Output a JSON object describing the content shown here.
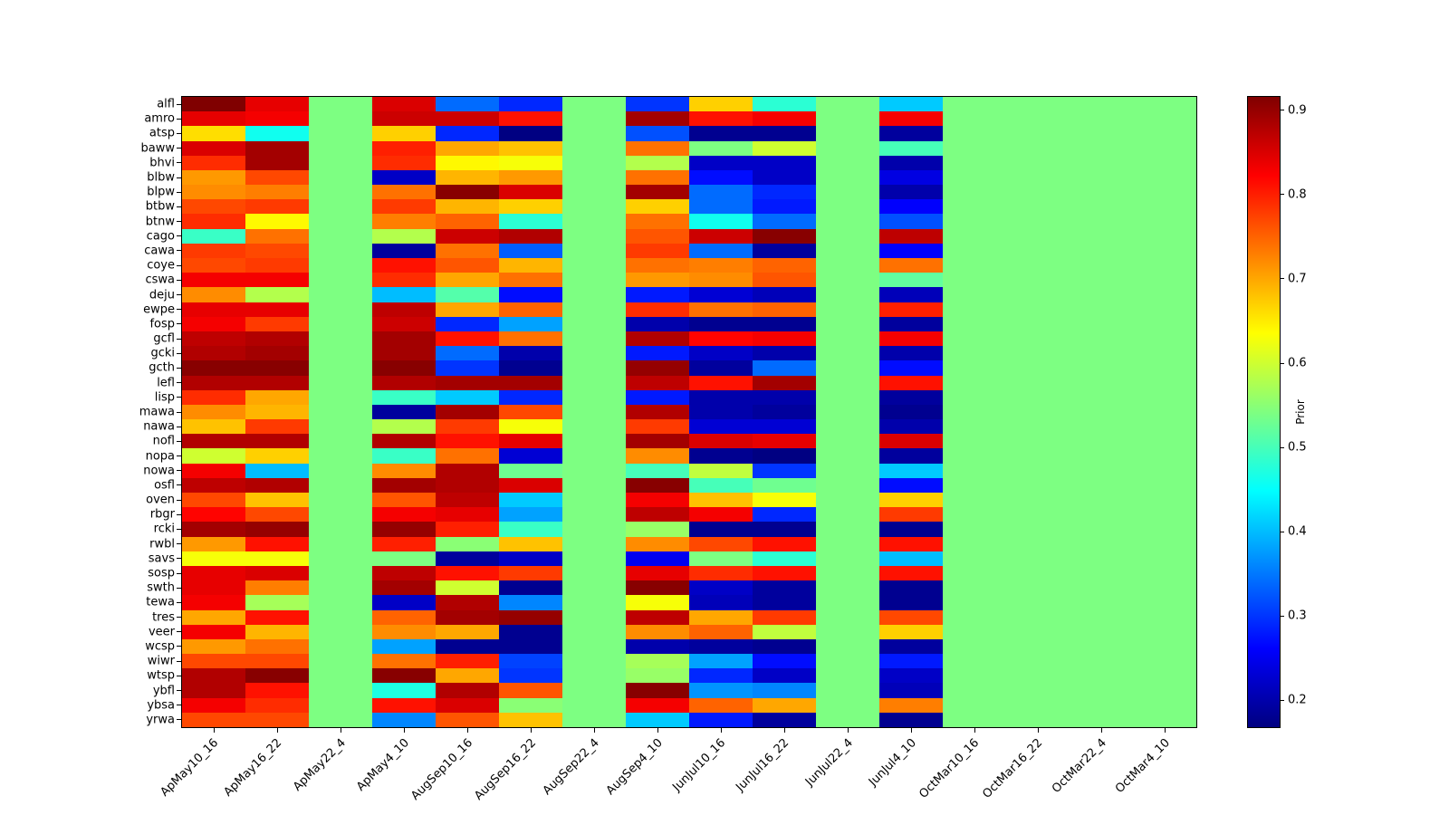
{
  "figure": {
    "background_color": "#ffffff"
  },
  "chart_data": {
    "type": "heatmap",
    "colormap": "jet",
    "vmin": 0.168,
    "vmax": 0.916,
    "grid": "off",
    "x_labels": [
      "ApMay10_16",
      "ApMay16_22",
      "ApMay22_4",
      "ApMay4_10",
      "AugSep10_16",
      "AugSep16_22",
      "AugSep22_4",
      "AugSep4_10",
      "JunJul10_16",
      "JunJul16_22",
      "JunJul22_4",
      "JunJul4_10",
      "OctMar10_16",
      "OctMar16_22",
      "OctMar22_4",
      "OctMar4_10"
    ],
    "y_labels": [
      "alfl",
      "amro",
      "atsp",
      "baww",
      "bhvi",
      "blbw",
      "blpw",
      "btbw",
      "btnw",
      "cago",
      "cawa",
      "coye",
      "cswa",
      "deju",
      "ewpe",
      "fosp",
      "gcfl",
      "gcki",
      "gcth",
      "lefl",
      "lisp",
      "mawa",
      "nawa",
      "nofl",
      "nopa",
      "nowa",
      "osfl",
      "oven",
      "rbgr",
      "rcki",
      "rwbl",
      "savs",
      "sosp",
      "swth",
      "tewa",
      "tres",
      "veer",
      "wcsp",
      "wiwr",
      "wtsp",
      "ybfl",
      "ybsa",
      "yrwa"
    ],
    "values": [
      [
        0.92,
        0.84,
        0.54,
        0.85,
        0.34,
        0.29,
        0.54,
        0.3,
        0.67,
        0.48,
        0.54,
        0.41,
        0.54,
        0.54,
        0.54,
        0.54
      ],
      [
        0.84,
        0.83,
        0.54,
        0.86,
        0.86,
        0.81,
        0.54,
        0.89,
        0.81,
        0.83,
        0.54,
        0.83,
        0.54,
        0.54,
        0.54,
        0.54
      ],
      [
        0.66,
        0.46,
        0.54,
        0.67,
        0.29,
        0.17,
        0.54,
        0.32,
        0.18,
        0.18,
        0.54,
        0.19,
        0.54,
        0.54,
        0.54,
        0.54
      ],
      [
        0.85,
        0.89,
        0.54,
        0.8,
        0.7,
        0.68,
        0.54,
        0.74,
        0.54,
        0.6,
        0.54,
        0.5,
        0.54,
        0.54,
        0.54,
        0.54
      ],
      [
        0.79,
        0.89,
        0.54,
        0.79,
        0.64,
        0.63,
        0.54,
        0.58,
        0.22,
        0.22,
        0.54,
        0.2,
        0.54,
        0.54,
        0.54,
        0.54
      ],
      [
        0.71,
        0.77,
        0.54,
        0.22,
        0.69,
        0.71,
        0.54,
        0.74,
        0.27,
        0.22,
        0.54,
        0.24,
        0.54,
        0.54,
        0.54,
        0.54
      ],
      [
        0.72,
        0.73,
        0.54,
        0.74,
        0.91,
        0.85,
        0.54,
        0.89,
        0.34,
        0.29,
        0.54,
        0.2,
        0.54,
        0.54,
        0.54,
        0.54
      ],
      [
        0.77,
        0.78,
        0.54,
        0.78,
        0.69,
        0.67,
        0.54,
        0.67,
        0.34,
        0.28,
        0.54,
        0.26,
        0.54,
        0.54,
        0.54,
        0.54
      ],
      [
        0.79,
        0.64,
        0.54,
        0.73,
        0.75,
        0.48,
        0.54,
        0.74,
        0.46,
        0.34,
        0.54,
        0.32,
        0.54,
        0.54,
        0.54,
        0.54
      ],
      [
        0.49,
        0.74,
        0.54,
        0.58,
        0.86,
        0.88,
        0.54,
        0.76,
        0.86,
        0.91,
        0.54,
        0.87,
        0.54,
        0.54,
        0.54,
        0.54
      ],
      [
        0.78,
        0.77,
        0.54,
        0.19,
        0.74,
        0.33,
        0.54,
        0.78,
        0.34,
        0.19,
        0.54,
        0.26,
        0.54,
        0.54,
        0.54,
        0.54
      ],
      [
        0.77,
        0.78,
        0.54,
        0.81,
        0.76,
        0.69,
        0.54,
        0.74,
        0.73,
        0.75,
        0.54,
        0.74,
        0.54,
        0.54,
        0.54,
        0.54
      ],
      [
        0.83,
        0.83,
        0.54,
        0.79,
        0.7,
        0.74,
        0.54,
        0.71,
        0.72,
        0.76,
        0.54,
        0.52,
        0.54,
        0.54,
        0.54,
        0.54
      ],
      [
        0.72,
        0.58,
        0.54,
        0.4,
        0.51,
        0.27,
        0.54,
        0.28,
        0.23,
        0.21,
        0.54,
        0.21,
        0.54,
        0.54,
        0.54,
        0.54
      ],
      [
        0.84,
        0.84,
        0.54,
        0.87,
        0.7,
        0.75,
        0.54,
        0.79,
        0.74,
        0.75,
        0.54,
        0.8,
        0.54,
        0.54,
        0.54,
        0.54
      ],
      [
        0.83,
        0.78,
        0.54,
        0.86,
        0.29,
        0.38,
        0.54,
        0.2,
        0.18,
        0.18,
        0.54,
        0.19,
        0.54,
        0.54,
        0.54,
        0.54
      ],
      [
        0.87,
        0.88,
        0.54,
        0.89,
        0.81,
        0.74,
        0.54,
        0.88,
        0.82,
        0.83,
        0.54,
        0.83,
        0.54,
        0.54,
        0.54,
        0.54
      ],
      [
        0.88,
        0.89,
        0.54,
        0.89,
        0.34,
        0.2,
        0.54,
        0.28,
        0.22,
        0.2,
        0.54,
        0.2,
        0.54,
        0.54,
        0.54,
        0.54
      ],
      [
        0.91,
        0.91,
        0.54,
        0.91,
        0.3,
        0.18,
        0.54,
        0.9,
        0.19,
        0.34,
        0.54,
        0.27,
        0.54,
        0.54,
        0.54,
        0.54
      ],
      [
        0.88,
        0.88,
        0.54,
        0.88,
        0.89,
        0.89,
        0.54,
        0.87,
        0.81,
        0.89,
        0.54,
        0.81,
        0.54,
        0.54,
        0.54,
        0.54
      ],
      [
        0.79,
        0.7,
        0.54,
        0.49,
        0.41,
        0.29,
        0.54,
        0.28,
        0.2,
        0.2,
        0.54,
        0.19,
        0.54,
        0.54,
        0.54,
        0.54
      ],
      [
        0.72,
        0.69,
        0.54,
        0.19,
        0.89,
        0.77,
        0.54,
        0.88,
        0.2,
        0.19,
        0.54,
        0.18,
        0.54,
        0.54,
        0.54,
        0.54
      ],
      [
        0.68,
        0.78,
        0.54,
        0.58,
        0.78,
        0.63,
        0.54,
        0.78,
        0.23,
        0.23,
        0.54,
        0.2,
        0.54,
        0.54,
        0.54,
        0.54
      ],
      [
        0.88,
        0.88,
        0.54,
        0.88,
        0.81,
        0.84,
        0.54,
        0.89,
        0.85,
        0.84,
        0.54,
        0.85,
        0.54,
        0.54,
        0.54,
        0.54
      ],
      [
        0.6,
        0.67,
        0.54,
        0.49,
        0.74,
        0.23,
        0.54,
        0.72,
        0.18,
        0.17,
        0.54,
        0.19,
        0.54,
        0.54,
        0.54,
        0.54
      ],
      [
        0.83,
        0.4,
        0.54,
        0.72,
        0.88,
        0.53,
        0.54,
        0.5,
        0.59,
        0.3,
        0.54,
        0.41,
        0.54,
        0.54,
        0.54,
        0.54
      ],
      [
        0.87,
        0.88,
        0.54,
        0.89,
        0.88,
        0.85,
        0.54,
        0.91,
        0.5,
        0.53,
        0.54,
        0.27,
        0.54,
        0.54,
        0.54,
        0.54
      ],
      [
        0.77,
        0.68,
        0.54,
        0.76,
        0.87,
        0.41,
        0.54,
        0.83,
        0.68,
        0.63,
        0.54,
        0.67,
        0.54,
        0.54,
        0.54,
        0.54
      ],
      [
        0.82,
        0.77,
        0.54,
        0.83,
        0.84,
        0.38,
        0.54,
        0.87,
        0.83,
        0.29,
        0.54,
        0.78,
        0.54,
        0.54,
        0.54,
        0.54
      ],
      [
        0.89,
        0.9,
        0.54,
        0.9,
        0.8,
        0.49,
        0.54,
        0.56,
        0.18,
        0.18,
        0.54,
        0.18,
        0.54,
        0.54,
        0.54,
        0.54
      ],
      [
        0.71,
        0.81,
        0.54,
        0.8,
        0.55,
        0.68,
        0.54,
        0.72,
        0.77,
        0.81,
        0.54,
        0.81,
        0.54,
        0.54,
        0.54,
        0.54
      ],
      [
        0.63,
        0.63,
        0.54,
        0.54,
        0.19,
        0.22,
        0.54,
        0.25,
        0.54,
        0.48,
        0.54,
        0.4,
        0.54,
        0.54,
        0.54,
        0.54
      ],
      [
        0.84,
        0.85,
        0.54,
        0.87,
        0.81,
        0.78,
        0.54,
        0.84,
        0.79,
        0.81,
        0.54,
        0.81,
        0.54,
        0.54,
        0.54,
        0.54
      ],
      [
        0.84,
        0.73,
        0.54,
        0.89,
        0.6,
        0.18,
        0.54,
        0.91,
        0.22,
        0.19,
        0.54,
        0.18,
        0.54,
        0.54,
        0.54,
        0.54
      ],
      [
        0.83,
        0.57,
        0.54,
        0.22,
        0.88,
        0.36,
        0.54,
        0.63,
        0.21,
        0.19,
        0.54,
        0.18,
        0.54,
        0.54,
        0.54,
        0.54
      ],
      [
        0.7,
        0.81,
        0.54,
        0.75,
        0.89,
        0.9,
        0.54,
        0.87,
        0.7,
        0.78,
        0.54,
        0.77,
        0.54,
        0.54,
        0.54,
        0.54
      ],
      [
        0.83,
        0.69,
        0.54,
        0.72,
        0.7,
        0.18,
        0.54,
        0.72,
        0.75,
        0.59,
        0.54,
        0.67,
        0.54,
        0.54,
        0.54,
        0.54
      ],
      [
        0.71,
        0.74,
        0.54,
        0.38,
        0.18,
        0.18,
        0.54,
        0.2,
        0.19,
        0.18,
        0.54,
        0.19,
        0.54,
        0.54,
        0.54,
        0.54
      ],
      [
        0.77,
        0.77,
        0.54,
        0.74,
        0.8,
        0.31,
        0.54,
        0.57,
        0.38,
        0.27,
        0.54,
        0.28,
        0.54,
        0.54,
        0.54,
        0.54
      ],
      [
        0.88,
        0.91,
        0.54,
        0.91,
        0.7,
        0.3,
        0.54,
        0.56,
        0.29,
        0.22,
        0.54,
        0.22,
        0.54,
        0.54,
        0.54,
        0.54
      ],
      [
        0.88,
        0.81,
        0.54,
        0.47,
        0.88,
        0.76,
        0.54,
        0.91,
        0.37,
        0.36,
        0.54,
        0.21,
        0.54,
        0.54,
        0.54,
        0.54
      ],
      [
        0.83,
        0.79,
        0.54,
        0.81,
        0.85,
        0.55,
        0.54,
        0.83,
        0.75,
        0.7,
        0.54,
        0.73,
        0.54,
        0.54,
        0.54,
        0.54
      ],
      [
        0.77,
        0.77,
        0.54,
        0.36,
        0.76,
        0.68,
        0.54,
        0.41,
        0.28,
        0.19,
        0.54,
        0.18,
        0.54,
        0.54,
        0.54,
        0.54
      ]
    ],
    "colorbar": {
      "label": "Prior",
      "ticks": [
        0.2,
        0.3,
        0.4,
        0.5,
        0.6,
        0.7,
        0.8,
        0.9
      ],
      "position": "right"
    }
  }
}
